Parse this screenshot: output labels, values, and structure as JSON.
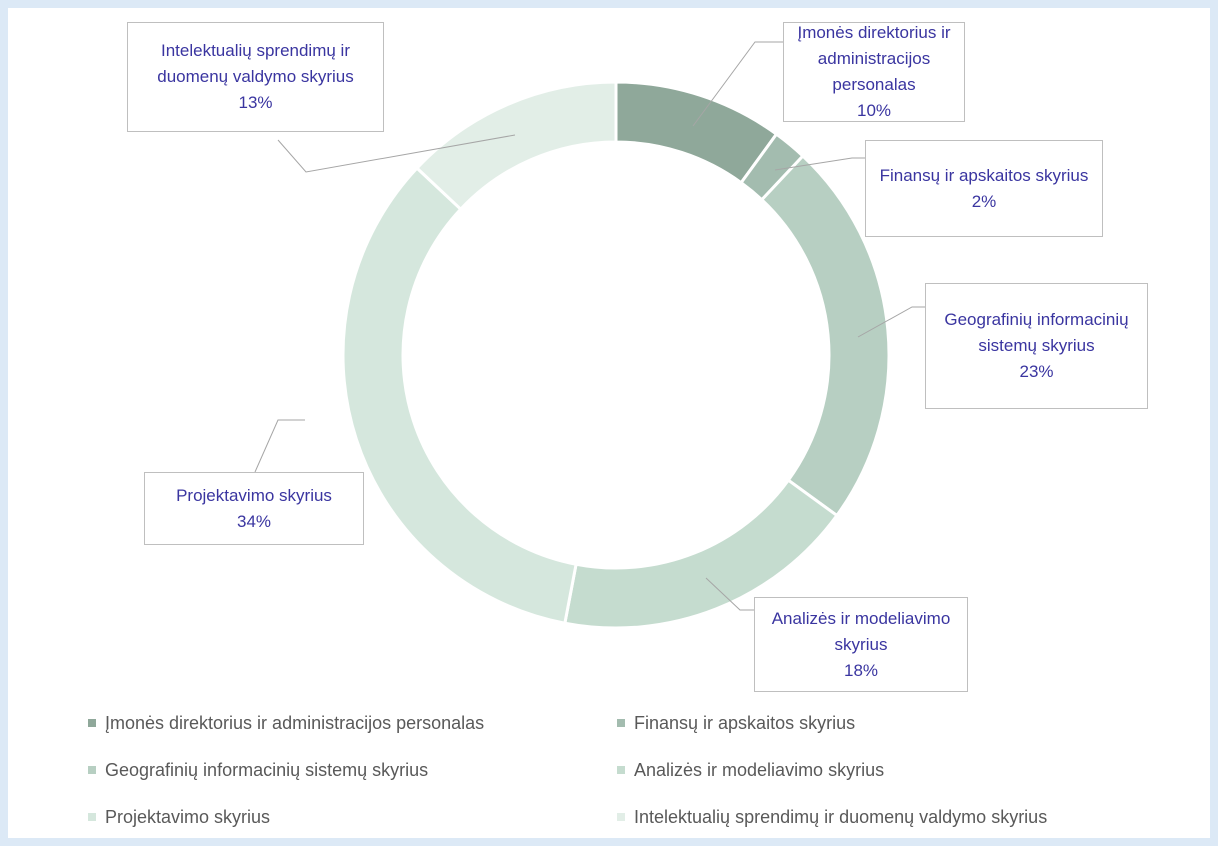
{
  "chart_data": {
    "type": "donut",
    "categories": [
      "Įmonės direktorius ir administracijos personalas",
      "Finansų ir apskaitos skyrius",
      "Geografinių informacinių sistemų skyrius",
      "Analizės ir modeliavimo skyrius",
      "Projektavimo skyrius",
      "Intelektualių sprendimų ir duomenų valdymo skyrius"
    ],
    "values": [
      10,
      2,
      23,
      18,
      34,
      13
    ],
    "value_labels": [
      "10%",
      "2%",
      "23%",
      "18%",
      "34%",
      "13%"
    ],
    "colors": [
      "#8fa89a",
      "#a3bcaf",
      "#b7cfc2",
      "#c5dccf",
      "#d5e7dd",
      "#e2eee7"
    ],
    "legend": "bottom"
  }
}
